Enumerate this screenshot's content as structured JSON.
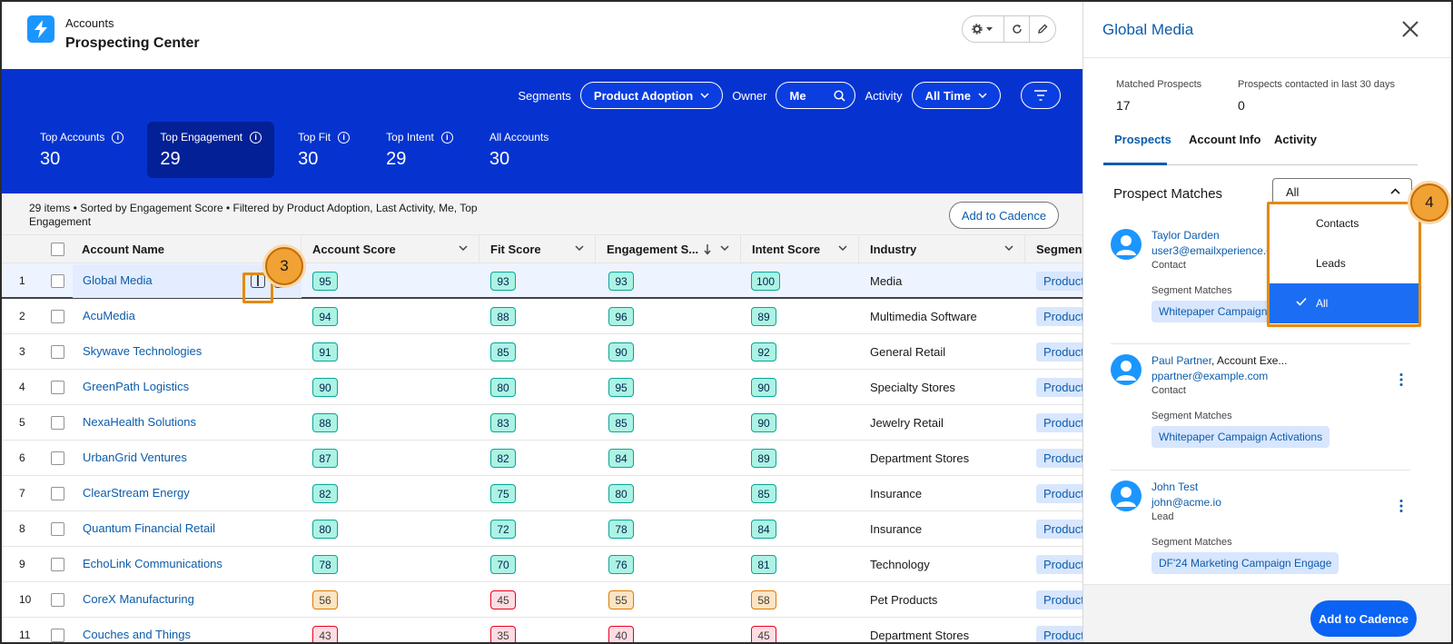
{
  "header": {
    "object_name": "Accounts",
    "page_title": "Prospecting Center"
  },
  "filters": {
    "segments_label": "Segments",
    "segments_value": "Product Adoption",
    "owner_label": "Owner",
    "owner_value": "Me",
    "activity_label": "Activity",
    "activity_value": "All Time"
  },
  "tiles": [
    {
      "label": "Top Accounts",
      "value": "30",
      "active": false
    },
    {
      "label": "Top Engagement",
      "value": "29",
      "active": true
    },
    {
      "label": "Top Fit",
      "value": "30",
      "active": false
    },
    {
      "label": "Top Intent",
      "value": "29",
      "active": false
    },
    {
      "label": "All Accounts",
      "value": "30",
      "active": false
    }
  ],
  "list": {
    "summary": "29 items • Sorted by Engagement Score • Filtered by Product Adoption, Last Activity, Me, Top Engagement",
    "add_to_cadence": "Add to Cadence"
  },
  "table": {
    "columns": [
      "Account Name",
      "Account Score",
      "Fit Score",
      "Engagement S...",
      "Intent Score",
      "Industry",
      "Segments"
    ],
    "rows": [
      {
        "num": "1",
        "name": "Global Media",
        "account": "95",
        "fit": "93",
        "engagement": "93",
        "intent": "100",
        "industry": "Media",
        "segment": "Product"
      },
      {
        "num": "2",
        "name": "AcuMedia",
        "account": "94",
        "fit": "88",
        "engagement": "96",
        "intent": "89",
        "industry": "Multimedia Software",
        "segment": "Product"
      },
      {
        "num": "3",
        "name": "Skywave Technologies",
        "account": "91",
        "fit": "85",
        "engagement": "90",
        "intent": "92",
        "industry": "General Retail",
        "segment": "Product"
      },
      {
        "num": "4",
        "name": "GreenPath Logistics",
        "account": "90",
        "fit": "80",
        "engagement": "95",
        "intent": "90",
        "industry": "Specialty Stores",
        "segment": "Product"
      },
      {
        "num": "5",
        "name": "NexaHealth Solutions",
        "account": "88",
        "fit": "83",
        "engagement": "85",
        "intent": "90",
        "industry": "Jewelry Retail",
        "segment": "Product"
      },
      {
        "num": "6",
        "name": "UrbanGrid Ventures",
        "account": "87",
        "fit": "82",
        "engagement": "84",
        "intent": "89",
        "industry": "Department Stores",
        "segment": "Product"
      },
      {
        "num": "7",
        "name": "ClearStream Energy",
        "account": "82",
        "fit": "75",
        "engagement": "80",
        "intent": "85",
        "industry": "Insurance",
        "segment": "Product"
      },
      {
        "num": "8",
        "name": "Quantum Financial Retail",
        "account": "80",
        "fit": "72",
        "engagement": "78",
        "intent": "84",
        "industry": "Insurance",
        "segment": "Product"
      },
      {
        "num": "9",
        "name": "EchoLink Communications",
        "account": "78",
        "fit": "70",
        "engagement": "76",
        "intent": "81",
        "industry": "Technology",
        "segment": "Product"
      },
      {
        "num": "10",
        "name": "CoreX Manufacturing",
        "account": "56",
        "fit": "45",
        "engagement": "55",
        "intent": "58",
        "industry": "Pet Products",
        "segment": "Product"
      },
      {
        "num": "11",
        "name": "Couches and Things",
        "account": "43",
        "fit": "35",
        "engagement": "40",
        "intent": "45",
        "industry": "Department Stores",
        "segment": "Product"
      }
    ]
  },
  "callouts": [
    "3",
    "4"
  ],
  "panel": {
    "title": "Global Media",
    "matched_label": "Matched Prospects",
    "matched_value": "17",
    "contacted_label": "Prospects contacted in last 30 days",
    "contacted_value": "0",
    "tabs": [
      "Prospects",
      "Account Info",
      "Activity"
    ],
    "matches_title": "Prospect Matches",
    "select_value": "All",
    "dropdown_options": [
      "Contacts",
      "Leads",
      "All"
    ],
    "segment_matches_label": "Segment Matches",
    "prospects": [
      {
        "name": "Taylor Darden",
        "role": "",
        "email": "user3@emailxperience.c",
        "type": "Contact",
        "segment": "Whitepaper Campaign"
      },
      {
        "name": "Paul Partner",
        "role": ", Account Exe...",
        "email": "ppartner@example.com",
        "type": "Contact",
        "segment": "Whitepaper Campaign Activations"
      },
      {
        "name": "John Test",
        "role": "",
        "email": "john@acme.io",
        "type": "Lead",
        "segment": "DF'24 Marketing Campaign Engage"
      }
    ],
    "footer_button": "Add to Cadence"
  },
  "colors": {
    "brand_blue": "#0633d0",
    "link": "#0b5cab",
    "score_high": "#acf3e4",
    "score_mid": "#fde4c2",
    "score_low": "#fddde3",
    "callout": "#f0a234"
  }
}
